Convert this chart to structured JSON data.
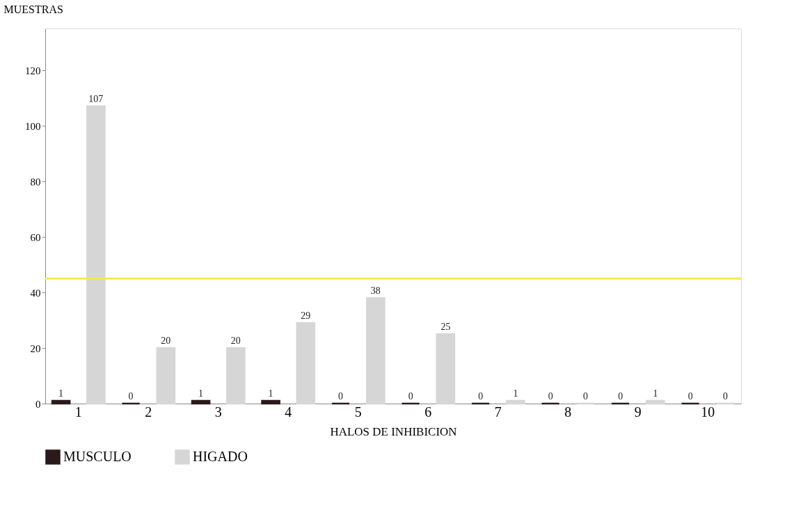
{
  "chart_data": {
    "type": "bar",
    "ylabel": "MUESTRAS",
    "xlabel": "HALOS DE INHIBICION",
    "categories": [
      "1",
      "2",
      "3",
      "4",
      "5",
      "6",
      "7",
      "8",
      "9",
      "10"
    ],
    "series": [
      {
        "name": "MUSCULO",
        "color": "#2a1a1a",
        "values": [
          1,
          0,
          1,
          1,
          0,
          0,
          0,
          0,
          0,
          0
        ]
      },
      {
        "name": "HIGADO",
        "color": "#d6d6d6",
        "values": [
          107,
          20,
          20,
          29,
          38,
          25,
          1,
          0,
          1,
          0
        ]
      }
    ],
    "ylim": [
      0,
      135
    ],
    "yticks": [
      0,
      20,
      40,
      60,
      80,
      100,
      120
    ],
    "data_labels": true,
    "grid": false,
    "legend": "bottom",
    "ref_lines": [
      {
        "axis": "y",
        "value": 45,
        "color": "#f5ea4a"
      }
    ]
  }
}
